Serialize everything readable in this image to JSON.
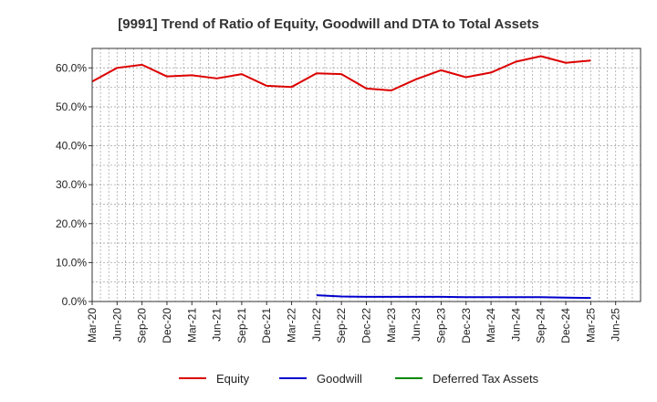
{
  "chart_data": {
    "type": "line",
    "title": "[9991]  Trend of Ratio of Equity, Goodwill and DTA to Total Assets",
    "xlabel": "",
    "ylabel": "",
    "ylim": [
      0,
      65
    ],
    "yticks": [
      0,
      10,
      20,
      30,
      40,
      50,
      60
    ],
    "ytick_labels": [
      "0.0%",
      "10.0%",
      "20.0%",
      "30.0%",
      "40.0%",
      "50.0%",
      "60.0%"
    ],
    "x_tick_labels": [
      "Mar-20",
      "Jun-20",
      "Sep-20",
      "Dec-20",
      "Mar-21",
      "Jun-21",
      "Sep-21",
      "Dec-21",
      "Mar-22",
      "Jun-22",
      "Sep-22",
      "Dec-22",
      "Mar-23",
      "Jun-23",
      "Sep-23",
      "Dec-23",
      "Mar-24",
      "Jun-24",
      "Sep-24",
      "Dec-24",
      "Mar-25",
      "Jun-25"
    ],
    "grid": true,
    "legend_position": "bottom",
    "series": [
      {
        "name": "Equity",
        "color": "#dd0000",
        "values": [
          56.5,
          60.0,
          60.8,
          57.8,
          58.1,
          57.3,
          58.4,
          55.4,
          55.1,
          58.6,
          58.4,
          54.7,
          54.2,
          57.1,
          59.4,
          57.6,
          58.8,
          61.6,
          63.0,
          61.3,
          61.9,
          null
        ]
      },
      {
        "name": "Goodwill",
        "color": "#0000cc",
        "values": [
          null,
          null,
          null,
          null,
          null,
          null,
          null,
          null,
          null,
          1.6,
          1.3,
          1.2,
          1.2,
          1.2,
          1.2,
          1.1,
          1.1,
          1.1,
          1.1,
          1.0,
          0.9,
          null
        ]
      },
      {
        "name": "Deferred Tax Assets",
        "color": "#008800",
        "values": [
          null,
          null,
          null,
          null,
          null,
          null,
          null,
          null,
          null,
          null,
          null,
          null,
          null,
          null,
          null,
          null,
          null,
          null,
          null,
          null,
          null,
          null
        ]
      }
    ]
  }
}
